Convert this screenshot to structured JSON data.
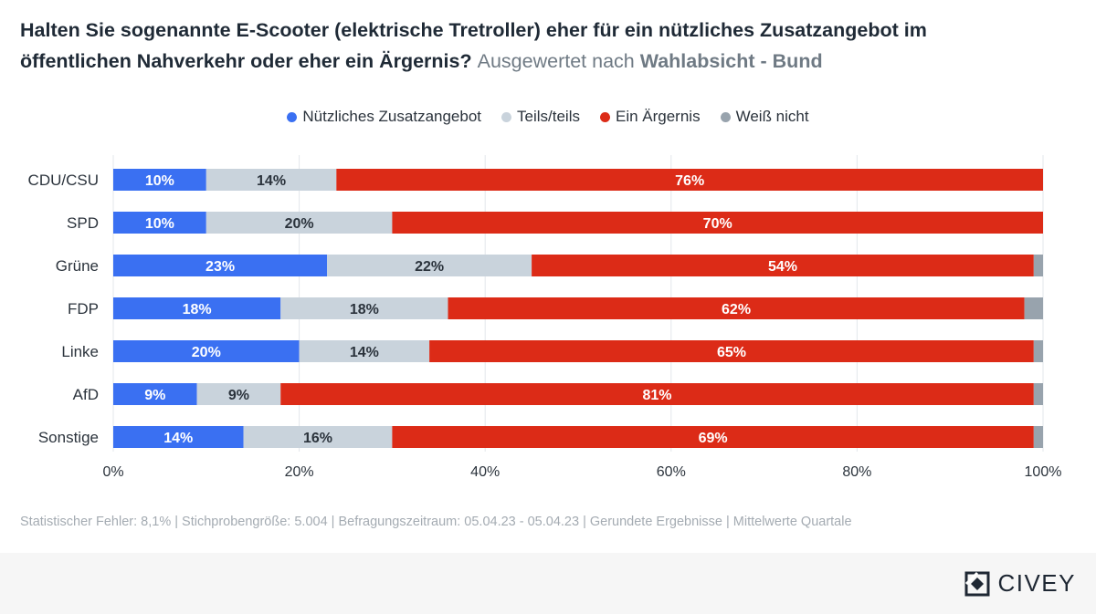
{
  "title": {
    "main": "Halten Sie sogenannte E-Scooter (elektrische Tretroller) eher für ein nützliches Zusatzangebot im öffentlichen Nahverkehr oder eher ein Ärgernis?",
    "sub_prefix": "Ausgewertet nach",
    "sub_bold": "Wahlabsicht - Bund"
  },
  "legend": [
    {
      "label": "Nützliches Zusatzangebot",
      "color": "#3a70f2"
    },
    {
      "label": "Teils/teils",
      "color": "#c9d3dc"
    },
    {
      "label": "Ein Ärgernis",
      "color": "#dc2b17"
    },
    {
      "label": "Weiß nicht",
      "color": "#98a3ad"
    }
  ],
  "chart_data": {
    "type": "bar",
    "orientation": "horizontal",
    "stacked": true,
    "categories": [
      "CDU/CSU",
      "SPD",
      "Grüne",
      "FDP",
      "Linke",
      "AfD",
      "Sonstige"
    ],
    "series": [
      {
        "name": "Nützliches Zusatzangebot",
        "color": "#3a70f2",
        "label_color": "#ffffff",
        "values": [
          10,
          10,
          23,
          18,
          20,
          9,
          14
        ]
      },
      {
        "name": "Teils/teils",
        "color": "#c9d3dc",
        "label_color": "#2b333c",
        "values": [
          14,
          20,
          22,
          18,
          14,
          9,
          16
        ]
      },
      {
        "name": "Ein Ärgernis",
        "color": "#dc2b17",
        "label_color": "#ffffff",
        "values": [
          76,
          70,
          54,
          62,
          65,
          81,
          69
        ]
      },
      {
        "name": "Weiß nicht",
        "color": "#98a3ad",
        "label_color": "#2b333c",
        "values": [
          0,
          0,
          1,
          2,
          1,
          1,
          1
        ]
      }
    ],
    "xlim": [
      0,
      100
    ],
    "xticks": [
      "0%",
      "20%",
      "40%",
      "60%",
      "80%",
      "100%"
    ],
    "value_suffix": "%",
    "grid": true,
    "legend_position": "top-center"
  },
  "footer": {
    "note": "Statistischer Fehler: 8,1% | Stichprobengröße: 5.004 | Befragungszeitraum: 05.04.23 - 05.04.23 | Gerundete Ergebnisse | Mittelwerte Quartale",
    "brand": "CIVEY"
  }
}
